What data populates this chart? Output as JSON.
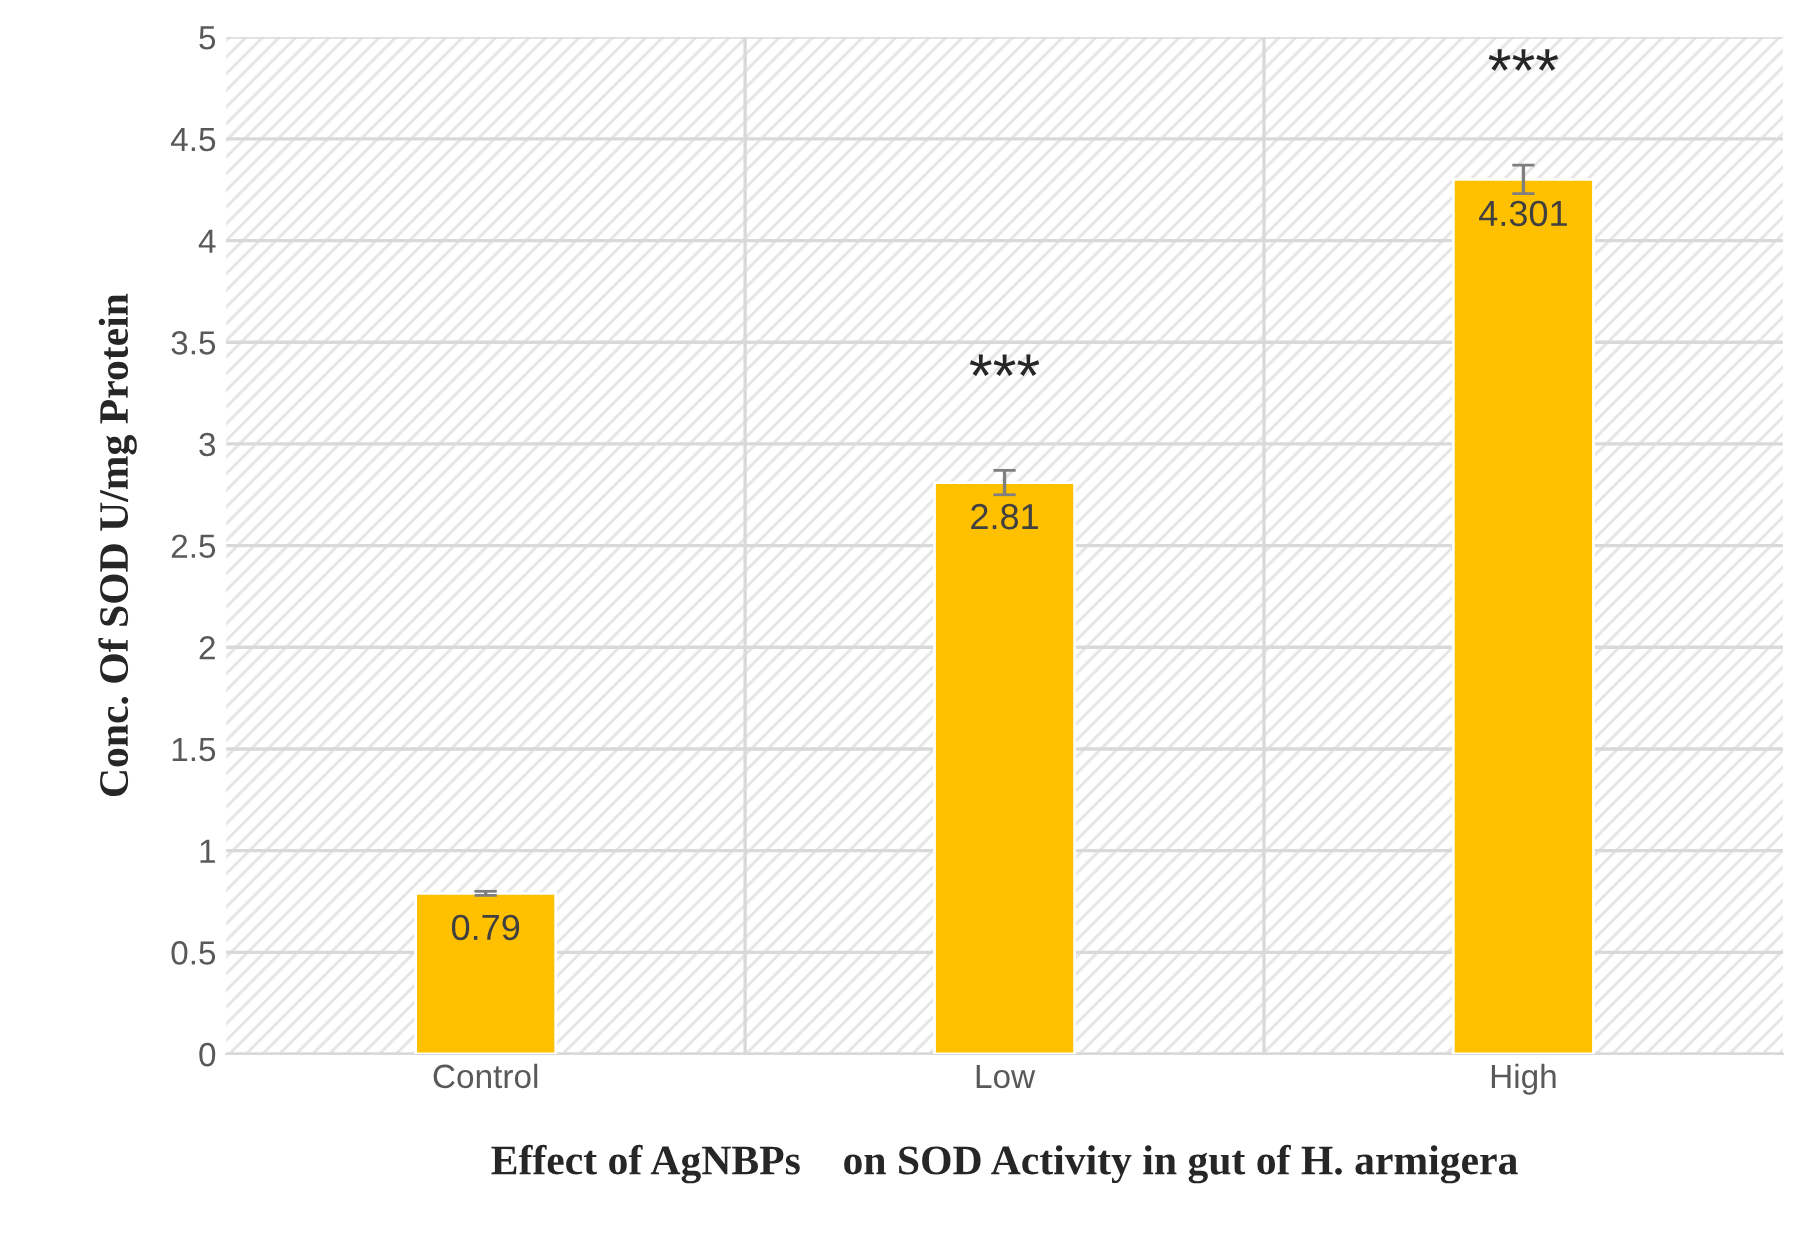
{
  "chart_data": {
    "type": "bar",
    "categories": [
      "Control",
      "Low",
      "High"
    ],
    "values": [
      0.79,
      2.81,
      4.301
    ],
    "errors": [
      0.01,
      0.06,
      0.07
    ],
    "color": "#ffc000",
    "data_labels": true,
    "ylim": [
      0,
      5
    ],
    "yticks": [
      0,
      0.5,
      1,
      1.5,
      2,
      2.5,
      3,
      3.5,
      4,
      4.5,
      5
    ],
    "ylabel": "Conc. Of SOD U/mg Protein",
    "xlabel": "Effect of AgNBPs    on SOD Activity in gut of H. armigera",
    "annotations": [
      "***",
      "***"
    ],
    "grid": true,
    "legend": false
  }
}
